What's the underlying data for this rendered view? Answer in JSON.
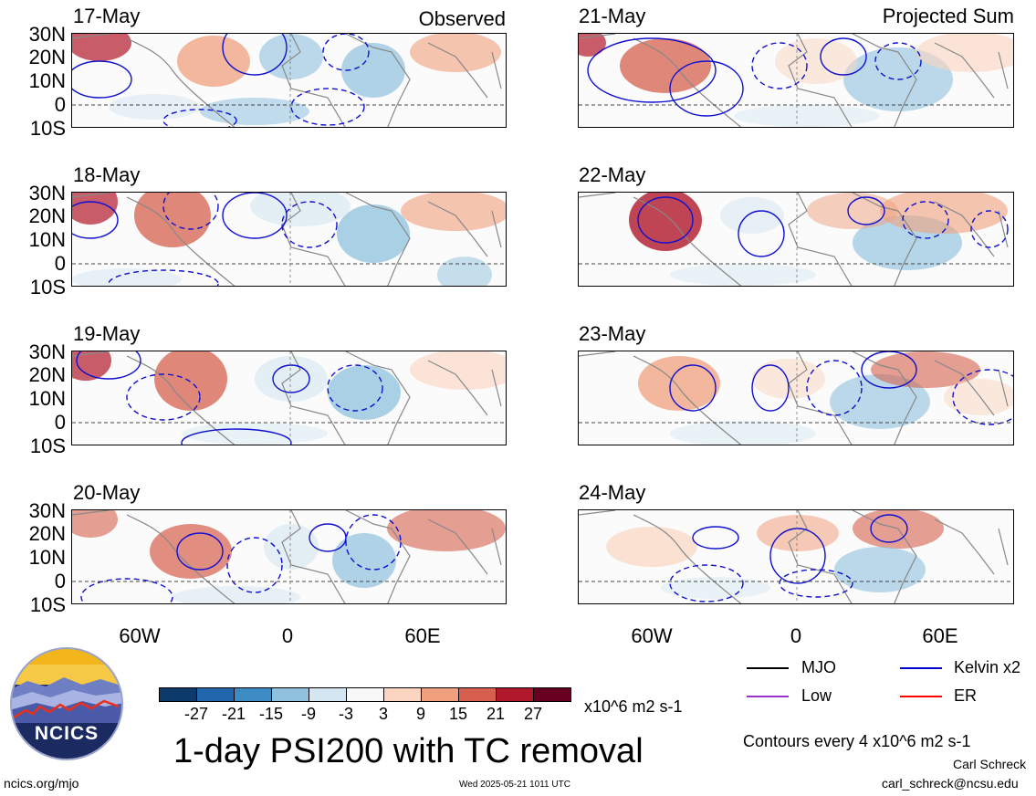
{
  "panels_left": {
    "tag": "Observed",
    "dates": [
      "17-May",
      "18-May",
      "19-May",
      "20-May"
    ]
  },
  "panels_right": {
    "tag": "Projected Sum",
    "dates": [
      "21-May",
      "22-May",
      "23-May",
      "24-May"
    ]
  },
  "lat_labels": [
    "30N",
    "20N",
    "10N",
    "0",
    "10S"
  ],
  "lon_labels": [
    "60W",
    "0",
    "60E"
  ],
  "colorbar": {
    "labels": [
      "-27",
      "-21",
      "-15",
      "-9",
      "-3",
      "3",
      "9",
      "15",
      "21",
      "27"
    ],
    "colors": [
      "#0c3a6a",
      "#2166ac",
      "#3d8bc4",
      "#8fc1de",
      "#d3e6f2",
      "#f8f8f8",
      "#fbd5bf",
      "#f0a07d",
      "#d6604d",
      "#b2182b",
      "#67001f"
    ],
    "units": "x10^6 m2 s-1"
  },
  "legend": {
    "items": [
      {
        "label": "MJO",
        "color": "#000000"
      },
      {
        "label": "Kelvin x2",
        "color": "#0000cc"
      },
      {
        "label": "Low",
        "color": "#9932cc"
      },
      {
        "label": "ER",
        "color": "#ff0000"
      }
    ],
    "contours_note": "Contours every 4 x10^6 m2 s-1"
  },
  "title": "1-day PSI200 with TC removal",
  "footer": {
    "url": "ncics.org/mjo",
    "timestamp": "Wed 2025-05-21 1011 UTC",
    "author": "Carl Schreck",
    "email": "carl_schreck@ncsu.edu"
  },
  "logo": {
    "text": "NCICS"
  }
}
